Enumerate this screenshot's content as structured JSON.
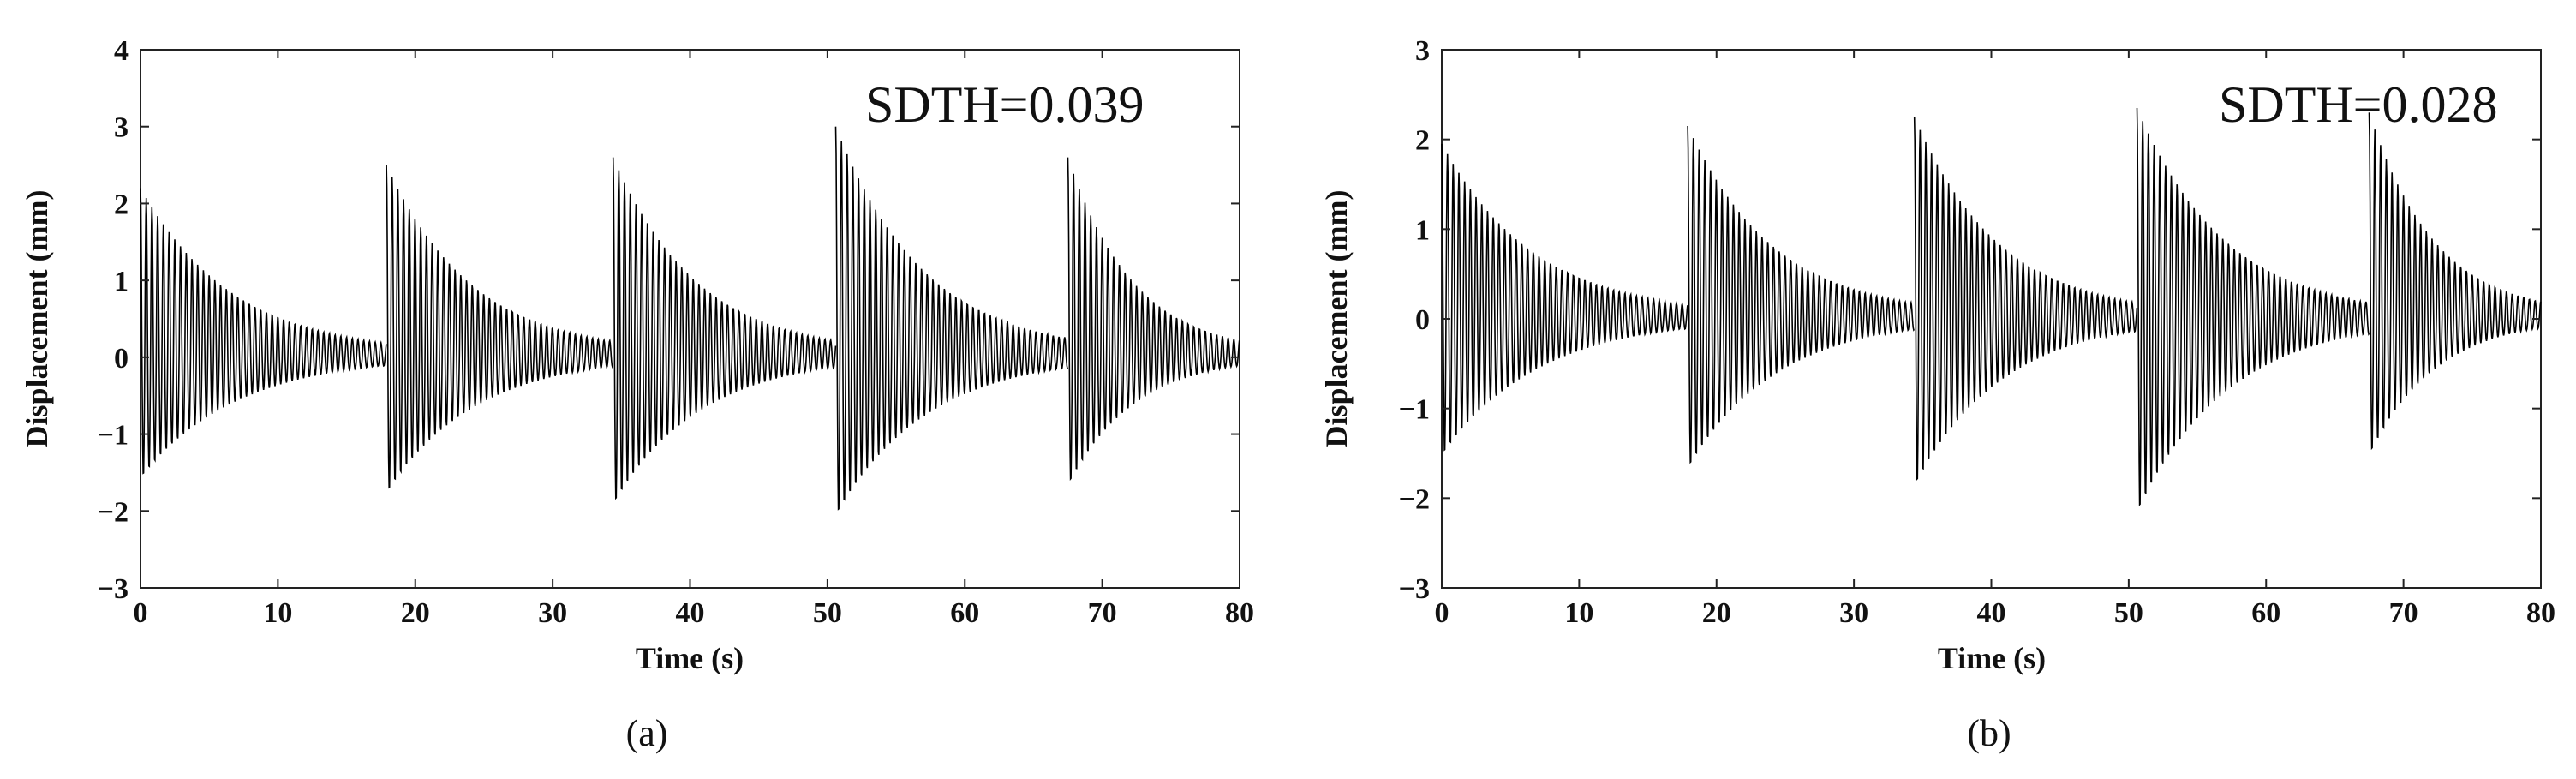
{
  "chart_data": [
    {
      "type": "line",
      "caption": "(a)",
      "annotation": "SDTH=0.039",
      "xlabel": "Time (s)",
      "ylabel": "Displacement (mm)",
      "xlim": [
        0,
        80
      ],
      "ylim": [
        -3,
        4
      ],
      "xticks": [
        "0",
        "10",
        "20",
        "30",
        "40",
        "50",
        "60",
        "70",
        "80"
      ],
      "yticks": [
        "4",
        "3",
        "2",
        "1",
        "0",
        "−1",
        "−2",
        "−3"
      ],
      "grid": false,
      "series": [
        {
          "color": "#000000",
          "bursts": [
            {
              "start": 0,
              "end": 17.9,
              "peak": 2.2,
              "trough": -1.6
            },
            {
              "start": 17.9,
              "end": 34.4,
              "peak": 2.5,
              "trough": -1.8
            },
            {
              "start": 34.4,
              "end": 50.6,
              "peak": 2.6,
              "trough": -1.95
            },
            {
              "start": 50.6,
              "end": 67.5,
              "peak": 3.0,
              "trough": -2.1
            },
            {
              "start": 67.5,
              "end": 80,
              "peak": 2.6,
              "trough": -1.7
            }
          ]
        }
      ]
    },
    {
      "type": "line",
      "caption": "(b)",
      "annotation": "SDTH=0.028",
      "xlabel": "Time (s)",
      "ylabel": "Displacement (mm)",
      "xlim": [
        0,
        80
      ],
      "ylim": [
        -3,
        3
      ],
      "xticks": [
        "0",
        "10",
        "20",
        "30",
        "40",
        "50",
        "60",
        "70",
        "80"
      ],
      "yticks": [
        "3",
        "2",
        "1",
        "0",
        "−1",
        "−2",
        "−3"
      ],
      "grid": false,
      "series": [
        {
          "color": "#000000",
          "bursts": [
            {
              "start": 0,
              "end": 17.9,
              "peak": 1.95,
              "trough": -1.55
            },
            {
              "start": 17.9,
              "end": 34.4,
              "peak": 2.15,
              "trough": -1.7
            },
            {
              "start": 34.4,
              "end": 50.6,
              "peak": 2.25,
              "trough": -1.9
            },
            {
              "start": 50.6,
              "end": 67.5,
              "peak": 2.35,
              "trough": -2.2
            },
            {
              "start": 67.5,
              "end": 80,
              "peak": 2.3,
              "trough": -1.55
            }
          ]
        }
      ]
    }
  ]
}
